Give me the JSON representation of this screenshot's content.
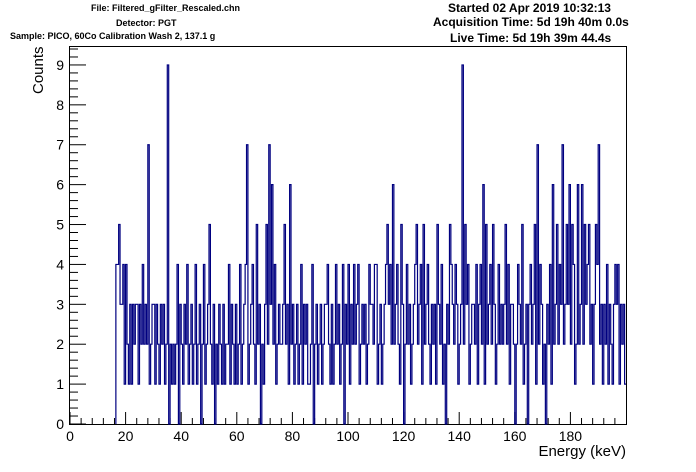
{
  "header": {
    "file_line": "File: Filtered_gFilter_Rescaled.chn",
    "detector_line": "Detector: PGT",
    "sample_line": "Sample: PICO, 60Co Calibration Wash 2, 137.1 g",
    "started_line": "Started 02 Apr 2019 10:32:13",
    "acquisition_line": "Acquisition Time: 5d 19h 40m 0.0s",
    "live_line": "Live Time: 5d 19h 39m 44.4s"
  },
  "chart_data": {
    "type": "line",
    "title": "",
    "xlabel": "Energy (keV)",
    "ylabel": "Counts",
    "xlim": [
      0,
      200
    ],
    "ylim": [
      0,
      9.45
    ],
    "xticks": [
      0,
      20,
      40,
      60,
      80,
      100,
      120,
      140,
      160,
      180
    ],
    "yticks": [
      0,
      1,
      2,
      3,
      4,
      5,
      6,
      7,
      8,
      9
    ],
    "bin_width": 0.5,
    "line_color": "#000080",
    "grid": false,
    "series": [
      {
        "x": [
          16.5,
          17.0,
          17.5,
          18.0,
          18.5,
          19.0,
          19.5,
          20.0,
          20.5,
          21.0,
          21.5,
          22.0,
          22.5,
          23.0,
          23.5,
          24.0,
          24.5,
          25.0,
          25.5,
          26.0,
          26.5,
          27.0,
          27.5,
          28.0,
          28.5,
          29.0,
          29.5,
          30.0,
          30.5,
          31.0,
          31.5,
          32.0,
          32.5,
          33.0,
          33.5,
          34.0,
          34.5,
          35.0,
          35.5,
          36.0,
          36.5,
          37.0,
          37.5,
          38.0,
          38.5,
          39.0,
          39.5,
          40.0,
          40.5,
          41.0,
          41.5,
          42.0,
          42.5,
          43.0,
          43.5,
          44.0,
          44.5,
          45.0,
          45.5,
          46.0,
          46.5,
          47.0,
          47.5,
          48.0,
          48.5,
          49.0,
          49.5,
          50.0,
          50.5,
          51.0,
          51.5,
          52.0,
          52.5,
          53.0,
          53.5,
          54.0,
          54.5,
          55.0,
          55.5,
          56.0,
          56.5,
          57.0,
          57.5,
          58.0,
          58.5,
          59.0,
          59.5,
          60.0,
          60.5,
          61.0,
          61.5,
          62.0,
          62.5,
          63.0,
          63.5,
          64.0,
          64.5,
          65.0,
          65.5,
          66.0,
          66.5,
          67.0,
          67.5,
          68.0,
          68.5,
          69.0,
          69.5,
          70.0,
          70.5,
          71.0,
          71.5,
          72.0,
          72.5,
          73.0,
          73.5,
          74.0,
          74.5,
          75.0,
          75.5,
          76.0,
          76.5,
          77.0,
          77.5,
          78.0,
          78.5,
          79.0,
          79.5,
          80.0,
          80.5,
          81.0,
          81.5,
          82.0,
          82.5,
          83.0,
          83.5,
          84.0,
          84.5,
          85.0,
          85.5,
          86.0,
          86.5,
          87.0,
          87.5,
          88.0,
          88.5,
          89.0,
          89.5,
          90.0,
          90.5,
          91.0,
          91.5,
          92.0,
          92.5,
          93.0,
          93.5,
          94.0,
          94.5,
          95.0,
          95.5,
          96.0,
          96.5,
          97.0,
          97.5,
          98.0,
          98.5,
          99.0,
          99.5,
          100.0,
          100.5,
          101.0,
          101.5,
          102.0,
          102.5,
          103.0,
          103.5,
          104.0,
          104.5,
          105.0,
          105.5,
          106.0,
          106.5,
          107.0,
          107.5,
          108.0,
          108.5,
          109.0,
          109.5,
          110.0,
          110.5,
          111.0,
          111.5,
          112.0,
          112.5,
          113.0,
          113.5,
          114.0,
          114.5,
          115.0,
          115.5,
          116.0,
          116.5,
          117.0,
          117.5,
          118.0,
          118.5,
          119.0,
          119.5,
          120.0,
          120.5,
          121.0,
          121.5,
          122.0,
          122.5,
          123.0,
          123.5,
          124.0,
          124.5,
          125.0,
          125.5,
          126.0,
          126.5,
          127.0,
          127.5,
          128.0,
          128.5,
          129.0,
          129.5,
          130.0,
          130.5,
          131.0,
          131.5,
          132.0,
          132.5,
          133.0,
          133.5,
          134.0,
          134.5,
          135.0,
          135.5,
          136.0,
          136.5,
          137.0,
          137.5,
          138.0,
          138.5,
          139.0,
          139.5,
          140.0,
          140.5,
          141.0,
          141.5,
          142.0,
          142.5,
          143.0,
          143.5,
          144.0,
          144.5,
          145.0,
          145.5,
          146.0,
          146.5,
          147.0,
          147.5,
          148.0,
          148.5,
          149.0,
          149.5,
          150.0,
          150.5,
          151.0,
          151.5,
          152.0,
          152.5,
          153.0,
          153.5,
          154.0,
          154.5,
          155.0,
          155.5,
          156.0,
          156.5,
          157.0,
          157.5,
          158.0,
          158.5,
          159.0,
          159.5,
          160.0,
          160.5,
          161.0,
          161.5,
          162.0,
          162.5,
          163.0,
          163.5,
          164.0,
          164.5,
          165.0,
          165.5,
          166.0,
          166.5,
          167.0,
          167.5,
          168.0,
          168.5,
          169.0,
          169.5,
          170.0,
          170.5,
          171.0,
          171.5,
          172.0,
          172.5,
          173.0,
          173.5,
          174.0,
          174.5,
          175.0,
          175.5,
          176.0,
          176.5,
          177.0,
          177.5,
          178.0,
          178.5,
          179.0,
          179.5,
          180.0,
          180.5,
          181.0,
          181.5,
          182.0,
          182.5,
          183.0,
          183.5,
          184.0,
          184.5,
          185.0,
          185.5,
          186.0,
          186.5,
          187.0,
          187.5,
          188.0,
          188.5,
          189.0,
          189.5,
          190.0,
          190.5,
          191.0,
          191.5,
          192.0,
          192.5,
          193.0,
          193.5,
          194.0,
          194.5,
          195.0,
          195.5,
          196.0,
          196.5,
          197.0,
          197.5,
          198.0,
          198.5,
          199.0,
          199.5
        ],
        "y": [
          4,
          4,
          5,
          3,
          3,
          4,
          1,
          4,
          2,
          1,
          3,
          1,
          3,
          2,
          3,
          3,
          1,
          3,
          2,
          4,
          2,
          3,
          2,
          7,
          1,
          2,
          3,
          3,
          1,
          3,
          2,
          1,
          3,
          2,
          3,
          1,
          2,
          9,
          0,
          2,
          1,
          2,
          1,
          2,
          4,
          0,
          3,
          2,
          1,
          3,
          2,
          4,
          1,
          2,
          3,
          1,
          2,
          4,
          1,
          2,
          3,
          0,
          2,
          4,
          1,
          2,
          3,
          5,
          2,
          1,
          3,
          0,
          2,
          1,
          3,
          2,
          1,
          3,
          1,
          2,
          2,
          4,
          1,
          3,
          2,
          1,
          3,
          1,
          2,
          4,
          1,
          2,
          3,
          4,
          7,
          1,
          2,
          3,
          4,
          2,
          1,
          5,
          2,
          3,
          0,
          2,
          1,
          3,
          5,
          2,
          7,
          3,
          6,
          2,
          4,
          1,
          2,
          3,
          2,
          2,
          3,
          5,
          2,
          3,
          1,
          6,
          2,
          3,
          1,
          2,
          3,
          1,
          2,
          4,
          1,
          3,
          2,
          3,
          1,
          1,
          2,
          4,
          0,
          2,
          3,
          1,
          2,
          3,
          1,
          2,
          3,
          3,
          4,
          2,
          1,
          3,
          1,
          2,
          4,
          2,
          3,
          1,
          2,
          4,
          0,
          3,
          2,
          4,
          1,
          3,
          2,
          4,
          2,
          3,
          4,
          1,
          2,
          3,
          2,
          3,
          1,
          2,
          4,
          3,
          3,
          2,
          4,
          4,
          1,
          2,
          3,
          1,
          2,
          3,
          4,
          5,
          3,
          4,
          2,
          6,
          2,
          3,
          4,
          2,
          1,
          5,
          3,
          0,
          2,
          4,
          2,
          3,
          1,
          2,
          3,
          4,
          5,
          2,
          3,
          4,
          1,
          5,
          2,
          3,
          4,
          2,
          1,
          3,
          2,
          3,
          1,
          5,
          3,
          2,
          4,
          1,
          2,
          0,
          3,
          2,
          5,
          4,
          3,
          2,
          4,
          3,
          1,
          2,
          3,
          9,
          2,
          5,
          3,
          4,
          1,
          2,
          3,
          3,
          2,
          4,
          1,
          3,
          4,
          2,
          6,
          1,
          5,
          2,
          3,
          4,
          2,
          5,
          3,
          1,
          2,
          4,
          2,
          3,
          2,
          3,
          5,
          2,
          4,
          1,
          3,
          3,
          2,
          0,
          2,
          4,
          3,
          2,
          5,
          1,
          2,
          3,
          0,
          3,
          4,
          2,
          3,
          5,
          1,
          7,
          2,
          4,
          3,
          1,
          2,
          0,
          3,
          2,
          4,
          1,
          6,
          2,
          3,
          5,
          2,
          4,
          3,
          7,
          2,
          3,
          5,
          3,
          6,
          2,
          5,
          4,
          1,
          2,
          6,
          2,
          3,
          6,
          2,
          5,
          3,
          4,
          5,
          2,
          3,
          1,
          3,
          5,
          4,
          7,
          2,
          3,
          1,
          3,
          2,
          4,
          1,
          3,
          2,
          1,
          3,
          4,
          3,
          4,
          1,
          3,
          2,
          3,
          1
        ]
      }
    ]
  }
}
